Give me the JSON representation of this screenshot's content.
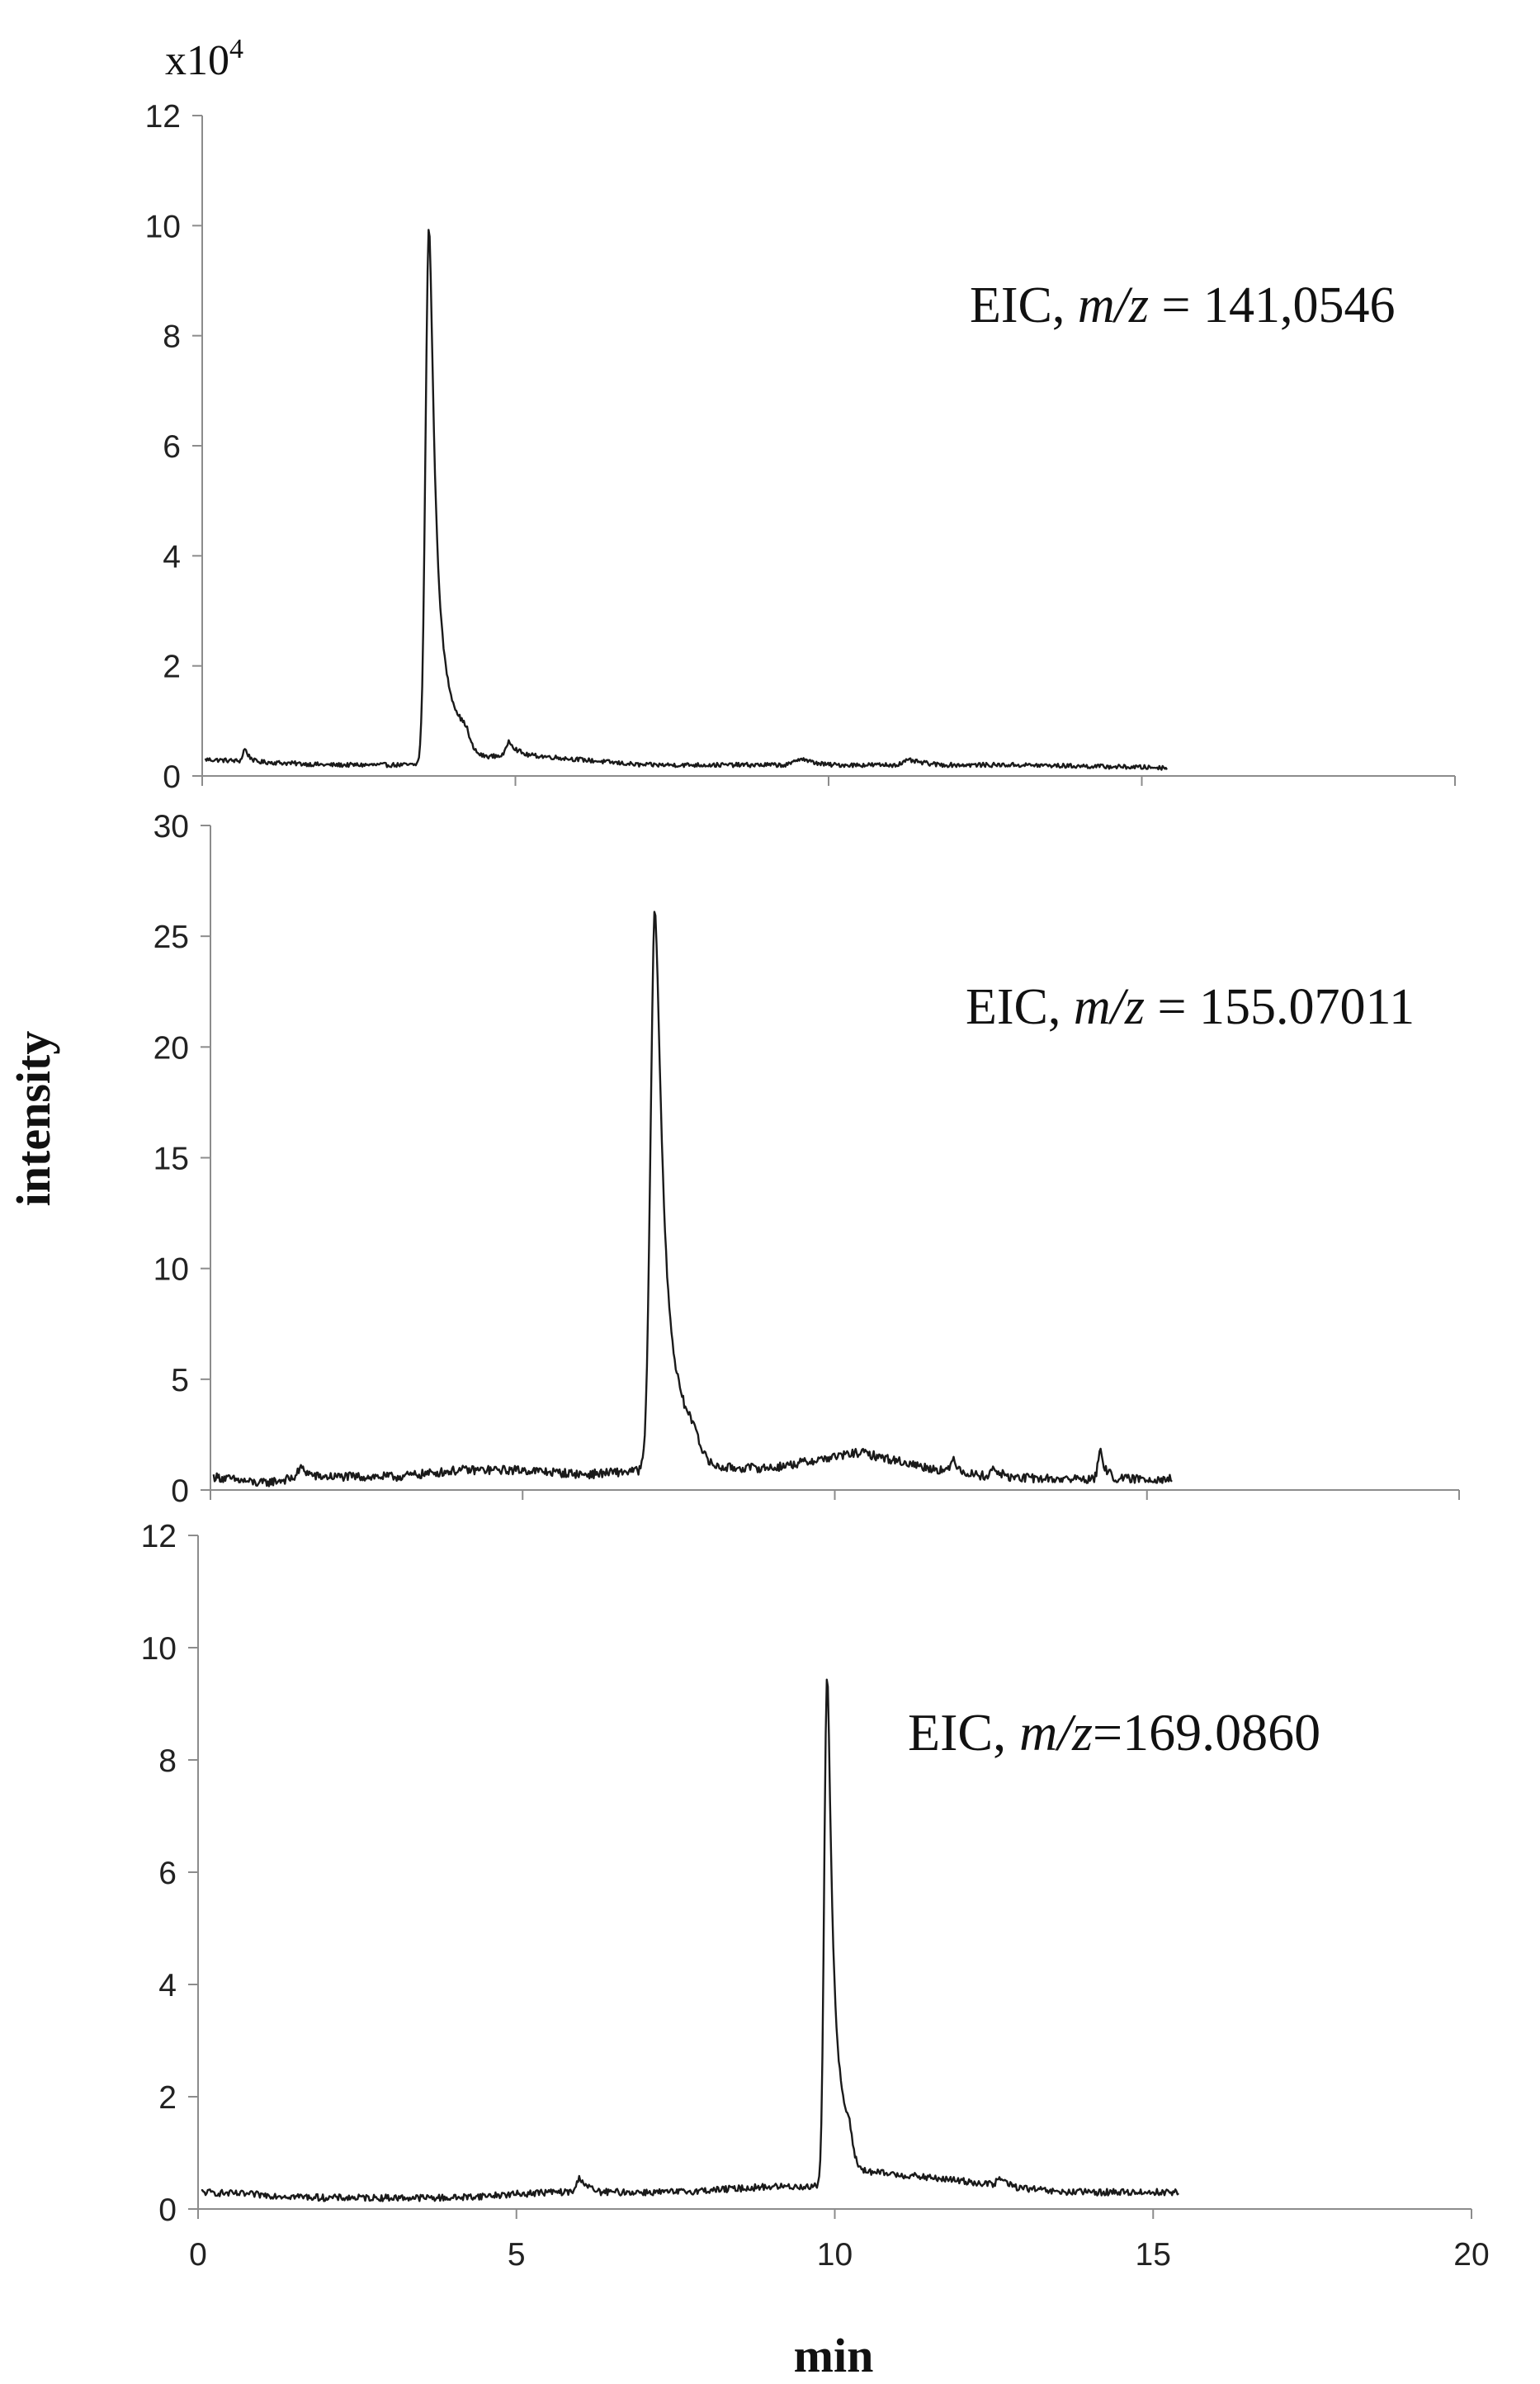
{
  "figure": {
    "y_axis_label": "intensity",
    "x_axis_label": "min",
    "multiplier_label": "x10",
    "multiplier_exponent": "4"
  },
  "chart_data": [
    {
      "type": "line",
      "annotation": {
        "prefix": "EIC",
        "sep": ", ",
        "mz": "m/z",
        "equals": " = ",
        "value": "141,0546"
      },
      "xlim": [
        0,
        20
      ],
      "ylim": [
        0,
        12
      ],
      "ytick_values": [
        0,
        2,
        4,
        6,
        8,
        10,
        12
      ],
      "ytick_labels": [
        "0",
        "2",
        "4",
        "6",
        "8",
        "10",
        "12"
      ],
      "xtick_values": [
        0,
        5,
        10,
        15,
        20
      ],
      "x_tick_labels_shown": false,
      "series": [
        {
          "baseline": [
            [
              0.05,
              0.3
            ],
            [
              2,
              0.2
            ],
            [
              3.4,
              0.2
            ],
            [
              5,
              0.4
            ],
            [
              7,
              0.2
            ],
            [
              9,
              0.2
            ],
            [
              11,
              0.2
            ],
            [
              13,
              0.2
            ],
            [
              15.4,
              0.15
            ]
          ],
          "peaks": [
            {
              "x": 3.62,
              "height": 9.75,
              "width": 0.055,
              "tail": 0.2
            },
            {
              "x": 0.68,
              "height": 0.22,
              "width": 0.03,
              "tail": 0.04
            },
            {
              "x": 4.9,
              "height": 0.25,
              "width": 0.04,
              "tail": 0.06
            },
            {
              "x": 9.55,
              "height": 0.12,
              "width": 0.08,
              "tail": 0.1
            },
            {
              "x": 11.3,
              "height": 0.08,
              "width": 0.1,
              "tail": 0.1
            }
          ],
          "noise": 0.04
        }
      ]
    },
    {
      "type": "line",
      "annotation": {
        "prefix": "EIC",
        "sep": ", ",
        "mz": "m/z",
        "equals": " = ",
        "value": "155.07011"
      },
      "xlim": [
        0,
        20
      ],
      "ylim": [
        0,
        30
      ],
      "ytick_values": [
        0,
        5,
        10,
        15,
        20,
        25,
        30
      ],
      "ytick_labels": [
        "0",
        "5",
        "10",
        "15",
        "20",
        "25",
        "30"
      ],
      "xtick_values": [
        0,
        5,
        10,
        15,
        20
      ],
      "x_tick_labels_shown": false,
      "series": [
        {
          "baseline": [
            [
              0.05,
              0.6
            ],
            [
              0.8,
              0.3
            ],
            [
              1.5,
              0.6
            ],
            [
              3,
              0.6
            ],
            [
              4,
              0.9
            ],
            [
              5,
              0.9
            ],
            [
              6,
              0.7
            ],
            [
              7,
              0.9
            ],
            [
              8,
              1.0
            ],
            [
              9,
              1.0
            ],
            [
              10.4,
              1.7
            ],
            [
              11.5,
              1.0
            ],
            [
              12.5,
              0.6
            ],
            [
              13.5,
              0.5
            ],
            [
              15.4,
              0.5
            ]
          ],
          "peaks": [
            {
              "x": 7.12,
              "height": 25.2,
              "width": 0.07,
              "tail": 0.22
            },
            {
              "x": 1.45,
              "height": 0.4,
              "width": 0.05,
              "tail": 0.05
            },
            {
              "x": 11.9,
              "height": 0.6,
              "width": 0.03,
              "tail": 0.05
            },
            {
              "x": 12.55,
              "height": 0.35,
              "width": 0.05,
              "tail": 0.05
            },
            {
              "x": 14.25,
              "height": 1.2,
              "width": 0.035,
              "tail": 0.06
            }
          ],
          "noise": 0.2
        }
      ]
    },
    {
      "type": "line",
      "annotation": {
        "prefix": "EIC",
        "sep": ", ",
        "mz": "m/z",
        "equals": "=",
        "value": "169.0860"
      },
      "xlim": [
        0,
        20
      ],
      "ylim": [
        0,
        12
      ],
      "ytick_values": [
        0,
        2,
        4,
        6,
        8,
        10,
        12
      ],
      "ytick_labels": [
        "0",
        "2",
        "4",
        "6",
        "8",
        "10",
        "12"
      ],
      "xtick_values": [
        0,
        5,
        10,
        15,
        20
      ],
      "xtick_labels": [
        "0",
        "5",
        "10",
        "15",
        "20"
      ],
      "x_tick_labels_shown": true,
      "series": [
        {
          "baseline": [
            [
              0.05,
              0.3
            ],
            [
              2,
              0.2
            ],
            [
              4,
              0.2
            ],
            [
              5.5,
              0.3
            ],
            [
              6.5,
              0.3
            ],
            [
              7.5,
              0.3
            ],
            [
              9,
              0.4
            ],
            [
              9.8,
              0.4
            ],
            [
              10.2,
              0.7
            ],
            [
              12,
              0.5
            ],
            [
              13.5,
              0.3
            ],
            [
              15.4,
              0.3
            ]
          ],
          "peaks": [
            {
              "x": 9.88,
              "height": 9.1,
              "width": 0.045,
              "tail": 0.12
            },
            {
              "x": 6.0,
              "height": 0.25,
              "width": 0.05,
              "tail": 0.06
            },
            {
              "x": 12.6,
              "height": 0.12,
              "width": 0.05,
              "tail": 0.05
            }
          ],
          "noise": 0.06
        }
      ]
    }
  ]
}
